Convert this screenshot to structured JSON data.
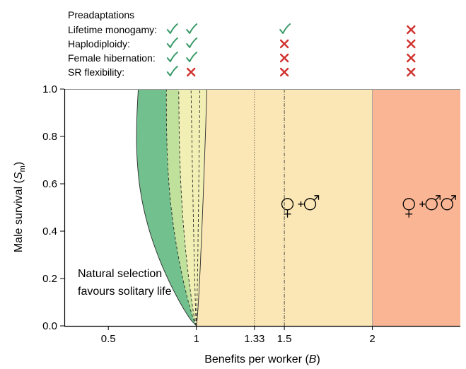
{
  "chart_data": {
    "type": "area",
    "preadaptations": {
      "header": "Preadaptations",
      "rows": [
        {
          "label": "Lifetime monogamy:",
          "marks": [
            "check",
            "check",
            "check",
            "cross"
          ]
        },
        {
          "label": "Haplodiploidy:",
          "marks": [
            "check",
            "check",
            "cross",
            "cross"
          ]
        },
        {
          "label": "Female hibernation:",
          "marks": [
            "check",
            "check",
            "cross",
            "cross"
          ]
        },
        {
          "label": "SR flexibility:",
          "marks": [
            "check",
            "cross",
            "cross",
            "cross"
          ]
        }
      ],
      "column_x": [
        0.86,
        0.97,
        1.5,
        2.22
      ]
    },
    "xlabel_main": "Benefits per worker (",
    "xlabel_var": "B",
    "xlabel_close": ")",
    "ylabel_main": "Male survival (",
    "ylabel_var": "S",
    "ylabel_sub": "m",
    "ylabel_close": ")",
    "xlim": [
      0.25,
      2.5
    ],
    "ylim": [
      0,
      1.0
    ],
    "xticks": [
      {
        "value": 0.5,
        "label": "0.5"
      },
      {
        "value": 1,
        "label": "1"
      },
      {
        "value": 1.33,
        "label": "1.33"
      },
      {
        "value": 1.5,
        "label": "1.5"
      },
      {
        "value": 2,
        "label": "2"
      }
    ],
    "yticks": [
      {
        "value": 0.0,
        "label": "0.0"
      },
      {
        "value": 0.2,
        "label": "0.2"
      },
      {
        "value": 0.4,
        "label": "0.4"
      },
      {
        "value": 0.6,
        "label": "0.6"
      },
      {
        "value": 0.8,
        "label": "0.8"
      },
      {
        "value": 1.0,
        "label": "1.0"
      }
    ],
    "boundaries": [
      {
        "name": "b1",
        "top_x": 0.67,
        "bulge": -0.1,
        "style": "solid"
      },
      {
        "name": "b2",
        "top_x": 0.83,
        "bulge": -0.04,
        "style": "dash"
      },
      {
        "name": "b3",
        "top_x": 0.9,
        "bulge": -0.02,
        "style": "dash"
      },
      {
        "name": "b4",
        "top_x": 0.97,
        "bulge": 0.0,
        "style": "dash"
      },
      {
        "name": "b5",
        "top_x": 1.02,
        "bulge": 0.0,
        "style": "dash"
      },
      {
        "name": "b6",
        "top_x": 1.06,
        "bulge": 0.0,
        "style": "solid"
      }
    ],
    "regions": [
      {
        "from": "b1",
        "to": "b2",
        "color": "#71c08e"
      },
      {
        "from": "b2",
        "to": "b3",
        "color": "#bfe19c"
      },
      {
        "from": "b3",
        "to": "b6",
        "color": "#f2efb5"
      }
    ],
    "bands": [
      {
        "x0_boundary": "b6",
        "x1": 2.0,
        "color": "#fbe6b5"
      },
      {
        "x0": 2.0,
        "x1": 2.5,
        "color": "#fab594"
      }
    ],
    "vlines": [
      {
        "x": 1.33,
        "style": "dotted"
      },
      {
        "x": 1.5,
        "style": "dashdot"
      },
      {
        "x": 2.0,
        "style": "solid"
      }
    ],
    "annotations": {
      "solitary": [
        "Natural selection",
        "favours solitary life"
      ],
      "sex_label_1": {
        "x": 1.59,
        "y": 0.52,
        "females": 1,
        "males": 1
      },
      "sex_label_2": {
        "x": 2.28,
        "y": 0.52,
        "females": 1,
        "males": 2
      }
    },
    "colors": {
      "check": "#3a9a68",
      "cross": "#d0312d"
    }
  }
}
